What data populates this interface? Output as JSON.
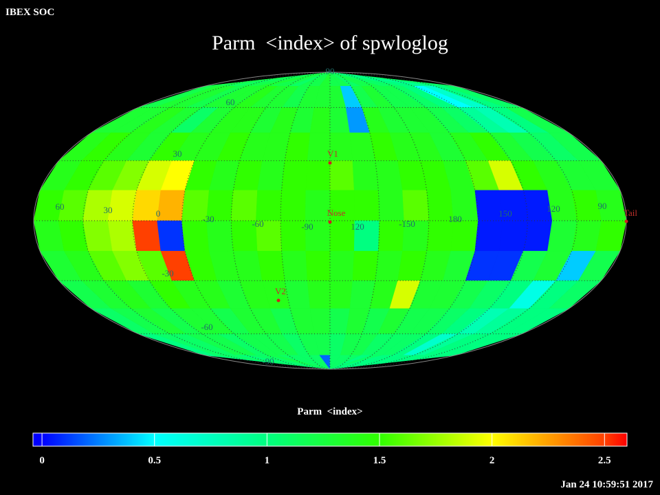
{
  "header": "IBEX SOC",
  "title": "Parm  <index> of spwloglog",
  "map": {
    "type": "mollweide",
    "cells": [
      [
        1.2,
        1.2,
        1.1,
        1.2,
        1.2,
        1.3,
        1.2,
        1.2,
        1.1,
        1.2,
        1.2,
        1.3,
        1.2,
        1.2,
        1.1,
        1.2,
        1.2,
        1.1,
        1.1,
        1.0,
        1.0,
        0.9,
        1.0,
        1.1
      ],
      [
        1.2,
        1.3,
        1.3,
        1.2,
        1.3,
        1.3,
        1.4,
        1.3,
        1.3,
        1.2,
        1.3,
        1.3,
        1.3,
        0.4,
        1.2,
        1.3,
        1.2,
        1.2,
        1.1,
        1.0,
        0.5,
        0.7,
        1.0,
        1.1
      ],
      [
        1.3,
        1.3,
        1.4,
        1.3,
        1.1,
        1.3,
        1.4,
        1.4,
        1.3,
        1.4,
        1.3,
        1.4,
        1.3,
        0.3,
        1.4,
        1.3,
        1.3,
        1.3,
        1.2,
        1.1,
        0.9,
        0.8,
        1.0,
        1.2
      ],
      [
        1.4,
        1.5,
        1.4,
        1.3,
        1.5,
        1.4,
        1.4,
        1.5,
        1.4,
        1.4,
        1.5,
        1.4,
        1.4,
        1.4,
        1.5,
        1.4,
        1.4,
        1.3,
        1.4,
        1.5,
        1.3,
        1.2,
        1.1,
        1.2
      ],
      [
        1.4,
        1.5,
        1.6,
        1.7,
        1.9,
        2.0,
        1.5,
        1.4,
        1.5,
        1.4,
        1.5,
        1.5,
        1.6,
        1.4,
        1.4,
        1.5,
        1.5,
        1.4,
        1.6,
        1.9,
        1.5,
        1.4,
        1.3,
        1.3
      ],
      [
        1.5,
        1.6,
        1.8,
        1.9,
        2.1,
        2.2,
        1.6,
        1.5,
        1.6,
        1.5,
        1.5,
        1.4,
        1.5,
        1.5,
        1.4,
        1.6,
        1.5,
        1.4,
        0.05,
        0.05,
        0.05,
        1.4,
        1.5,
        1.4
      ],
      [
        1.4,
        1.5,
        1.7,
        1.8,
        2.5,
        0.1,
        1.5,
        1.4,
        1.5,
        1.6,
        1.5,
        1.4,
        1.5,
        1.0,
        1.5,
        1.4,
        1.5,
        1.5,
        0.05,
        0.05,
        0.05,
        1.3,
        1.4,
        1.5
      ],
      [
        1.3,
        1.4,
        1.6,
        1.7,
        1.6,
        2.5,
        1.5,
        1.4,
        1.4,
        1.5,
        1.4,
        1.5,
        1.4,
        1.5,
        1.4,
        1.5,
        1.4,
        1.3,
        0.1,
        0.1,
        1.2,
        1.3,
        0.4,
        1.2
      ],
      [
        1.2,
        1.3,
        1.4,
        1.3,
        1.5,
        1.4,
        1.4,
        1.3,
        1.4,
        1.4,
        1.3,
        1.4,
        1.4,
        1.3,
        1.4,
        1.9,
        1.3,
        1.3,
        1.2,
        1.1,
        1.0,
        0.6,
        1.0,
        1.1
      ],
      [
        1.1,
        1.2,
        1.3,
        1.2,
        1.3,
        1.3,
        1.2,
        1.3,
        1.3,
        1.2,
        1.3,
        1.3,
        1.2,
        1.3,
        1.2,
        1.3,
        1.2,
        1.2,
        1.1,
        1.0,
        0.8,
        0.9,
        1.0,
        1.0
      ],
      [
        1.0,
        1.1,
        1.1,
        1.2,
        1.2,
        1.1,
        1.2,
        1.2,
        1.2,
        1.1,
        1.2,
        1.2,
        1.1,
        1.2,
        1.2,
        1.1,
        1.1,
        1.1,
        1.0,
        0.7,
        0.9,
        1.0,
        1.0,
        1.0
      ],
      [
        1.0,
        1.1,
        1.1,
        1.0,
        1.1,
        1.1,
        1.2,
        1.1,
        1.1,
        1.1,
        1.1,
        0.2,
        1.1,
        1.1,
        1.1,
        1.0,
        1.1,
        1.0,
        1.0,
        1.0,
        1.0,
        1.0,
        1.0,
        1.0
      ]
    ],
    "grid_labels": [
      "90",
      "60",
      "30",
      "60",
      "30",
      "0",
      "-30",
      "-60",
      "-90",
      "120",
      "-150",
      "180",
      "150",
      "120",
      "90",
      "-30",
      "-60",
      "-90"
    ],
    "markers": [
      "V1",
      "Nose",
      "V2",
      "Tail"
    ]
  },
  "colorbar": {
    "label": "Parm  <index>",
    "range": [
      -0.04,
      2.6
    ],
    "ticks": [
      0,
      0.5,
      1,
      1.5,
      2,
      2.5
    ],
    "stops": [
      {
        "value": 0,
        "color": "#0000ff"
      },
      {
        "value": 0.5,
        "color": "#00ffff"
      },
      {
        "value": 1,
        "color": "#00ff80"
      },
      {
        "value": 1.5,
        "color": "#30ff00"
      },
      {
        "value": 2,
        "color": "#ffff00"
      },
      {
        "value": 2.5,
        "color": "#ff4000"
      },
      {
        "value": 2.6,
        "color": "#ff0000"
      }
    ]
  },
  "timestamp": "Jan 24 10:59:51 2017"
}
